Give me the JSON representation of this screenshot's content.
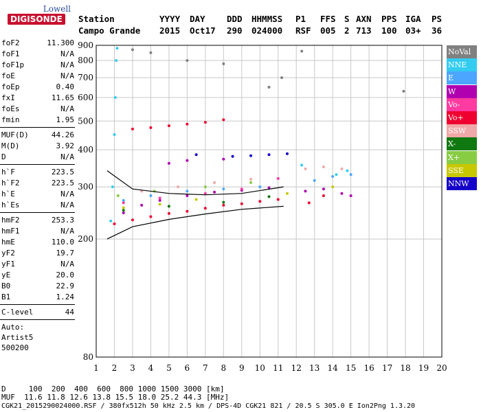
{
  "logo": {
    "top": "Lowell",
    "main": "DIGISONDE"
  },
  "header": {
    "labels": [
      "Station",
      "YYYY",
      "DAY",
      "DDD",
      "HHMMSS",
      "P1",
      "FFS",
      "S",
      "AXN",
      "PPS",
      "IGA",
      "PS"
    ],
    "values": [
      "Campo Grande",
      "2015",
      "Oct17",
      "290",
      "024000",
      "RSF",
      "005",
      "2",
      "713",
      "100",
      "03+",
      "36"
    ]
  },
  "params": {
    "group1": [
      {
        "k": "foF2",
        "v": "11.300"
      },
      {
        "k": "foF1",
        "v": "N/A"
      },
      {
        "k": "foF1p",
        "v": "N/A"
      },
      {
        "k": "foE",
        "v": "N/A"
      },
      {
        "k": "foEp",
        "v": "0.40"
      },
      {
        "k": "fxI",
        "v": "11.65"
      },
      {
        "k": "foEs",
        "v": "N/A"
      },
      {
        "k": "fmin",
        "v": "1.95"
      }
    ],
    "group2": [
      {
        "k": "MUF(D)",
        "v": "44.26"
      },
      {
        "k": "M(D)",
        "v": "3.92"
      },
      {
        "k": "D",
        "v": "N/A"
      }
    ],
    "group3": [
      {
        "k": "h`F",
        "v": "223.5"
      },
      {
        "k": "h`F2",
        "v": "223.5"
      },
      {
        "k": "h`E",
        "v": "N/A"
      },
      {
        "k": "h`Es",
        "v": "N/A"
      }
    ],
    "group4": [
      {
        "k": "hmF2",
        "v": "253.3"
      },
      {
        "k": "hmF1",
        "v": "N/A"
      },
      {
        "k": "hmE",
        "v": "110.0"
      },
      {
        "k": "yF2",
        "v": "19.7"
      },
      {
        "k": "yF1",
        "v": "N/A"
      },
      {
        "k": "yE",
        "v": "20.0"
      },
      {
        "k": "B0",
        "v": "22.9"
      },
      {
        "k": "B1",
        "v": "1.24"
      }
    ],
    "group5": [
      {
        "k": "C-level",
        "v": "44"
      }
    ],
    "group6": [
      "Auto:",
      "Artist5",
      "500200"
    ]
  },
  "legend": [
    {
      "label": "NoVal",
      "color": "#808080"
    },
    {
      "label": "NNE",
      "color": "#33ccf0"
    },
    {
      "label": "E",
      "color": "#4ca6ff"
    },
    {
      "label": "W",
      "color": "#b000b0"
    },
    {
      "label": "Vo-",
      "color": "#ff3aa0"
    },
    {
      "label": "Vo+",
      "color": "#ee0030"
    },
    {
      "label": "SSW",
      "color": "#f0a8a8"
    },
    {
      "label": "X-",
      "color": "#107810"
    },
    {
      "label": "X+",
      "color": "#88cc44"
    },
    {
      "label": "SSE",
      "color": "#c8c800"
    },
    {
      "label": "NNW",
      "color": "#1400c8"
    }
  ],
  "chart_data": {
    "type": "scatter",
    "title": "",
    "xlabel": "",
    "ylabel": "",
    "xlim": [
      1,
      20
    ],
    "ylim": [
      80,
      900
    ],
    "x_ticks": [
      1,
      2,
      3,
      4,
      5,
      6,
      7,
      8,
      9,
      10,
      11,
      12,
      13,
      14,
      15,
      16,
      17,
      18,
      19,
      20
    ],
    "y_ticks": [
      80,
      200,
      300,
      400,
      500,
      600,
      700,
      800,
      900
    ],
    "grid": true,
    "legend_position": "right",
    "series": [
      {
        "mode": "NNE",
        "values": [
          [
            1.8,
            230
          ],
          [
            1.9,
            300
          ],
          [
            2.0,
            450
          ],
          [
            2.05,
            600
          ],
          [
            2.1,
            800
          ],
          [
            2.15,
            880
          ],
          [
            12.3,
            355
          ],
          [
            14.2,
            330
          ],
          [
            14.8,
            340
          ]
        ]
      },
      {
        "mode": "Vo+",
        "values": [
          [
            2.0,
            225
          ],
          [
            3.0,
            232
          ],
          [
            4.0,
            238
          ],
          [
            5.0,
            244
          ],
          [
            6.0,
            248
          ],
          [
            7.0,
            254
          ],
          [
            8.0,
            260
          ],
          [
            9.0,
            263
          ],
          [
            10.0,
            268
          ],
          [
            11.0,
            272
          ],
          [
            3.0,
            470
          ],
          [
            4.0,
            475
          ],
          [
            5.0,
            482
          ],
          [
            6.0,
            488
          ],
          [
            7.0,
            495
          ],
          [
            8.0,
            505
          ],
          [
            12.7,
            265
          ],
          [
            13.5,
            280
          ]
        ]
      },
      {
        "mode": "W",
        "values": [
          [
            2.5,
            245
          ],
          [
            3.5,
            260
          ],
          [
            4.5,
            270
          ],
          [
            6.0,
            280
          ],
          [
            7.5,
            288
          ],
          [
            9.0,
            292
          ],
          [
            10.5,
            298
          ],
          [
            12.5,
            290
          ],
          [
            13.5,
            295
          ],
          [
            14.5,
            285
          ],
          [
            15.0,
            280
          ],
          [
            5.0,
            360
          ],
          [
            6.0,
            368
          ],
          [
            8.0,
            372
          ]
        ]
      },
      {
        "mode": "NNW",
        "values": [
          [
            8.5,
            380
          ],
          [
            9.5,
            382
          ],
          [
            10.5,
            385
          ],
          [
            11.5,
            388
          ],
          [
            6.5,
            385
          ]
        ]
      },
      {
        "mode": "E",
        "values": [
          [
            2.5,
            270
          ],
          [
            4.0,
            280
          ],
          [
            6.0,
            290
          ],
          [
            8.0,
            295
          ],
          [
            10.0,
            300
          ],
          [
            13.0,
            315
          ],
          [
            14.0,
            325
          ],
          [
            15.0,
            330
          ]
        ]
      },
      {
        "mode": "SSW",
        "values": [
          [
            3.5,
            290
          ],
          [
            5.5,
            300
          ],
          [
            7.5,
            310
          ],
          [
            9.5,
            318
          ],
          [
            12.5,
            345
          ],
          [
            13.5,
            350
          ],
          [
            14.5,
            345
          ]
        ]
      },
      {
        "mode": "SSE",
        "values": [
          [
            2.5,
            255
          ],
          [
            4.5,
            262
          ],
          [
            6.5,
            272
          ],
          [
            11.5,
            285
          ],
          [
            14.0,
            300
          ]
        ]
      },
      {
        "mode": "X-",
        "values": [
          [
            2.5,
            250
          ],
          [
            5.0,
            258
          ],
          [
            8.0,
            266
          ],
          [
            10.5,
            278
          ]
        ]
      },
      {
        "mode": "X+",
        "values": [
          [
            2.2,
            280
          ],
          [
            4.2,
            290
          ],
          [
            7.0,
            300
          ],
          [
            9.5,
            310
          ]
        ]
      },
      {
        "mode": "Vo-",
        "values": [
          [
            2.5,
            265
          ],
          [
            4.5,
            275
          ],
          [
            7.0,
            285
          ],
          [
            9.0,
            295
          ],
          [
            11.0,
            320
          ]
        ]
      },
      {
        "mode": "NoVal",
        "values": [
          [
            3.0,
            870
          ],
          [
            4.0,
            850
          ],
          [
            6.0,
            800
          ],
          [
            8.0,
            780
          ],
          [
            10.5,
            650
          ],
          [
            11.2,
            700
          ],
          [
            12.3,
            860
          ],
          [
            17.9,
            630
          ]
        ]
      }
    ],
    "traces": [
      {
        "mode": "profile",
        "values": [
          [
            1.6,
            200
          ],
          [
            3,
            220
          ],
          [
            5,
            233
          ],
          [
            7,
            243
          ],
          [
            9,
            252
          ],
          [
            11.3,
            258
          ]
        ]
      },
      {
        "mode": "profile",
        "values": [
          [
            1.6,
            340
          ],
          [
            3,
            295
          ],
          [
            5,
            285
          ],
          [
            7,
            282
          ],
          [
            9,
            285
          ],
          [
            11.3,
            300
          ]
        ]
      }
    ]
  },
  "footer": {
    "line1": "D     100  200  400  600  800 1000 1500 3000 [km]",
    "line2": "MUF  11.6 11.8 12.6 13.8 15.5 18.0 25.2 44.3 [MHz]",
    "line3": "CGK21_2015290024000.RSF / 380fx512h 50 kHz 2.5 km / DPS-4D CGK21 821 / 20.5 S 305.0 E Ion2Png 1.3.20"
  }
}
